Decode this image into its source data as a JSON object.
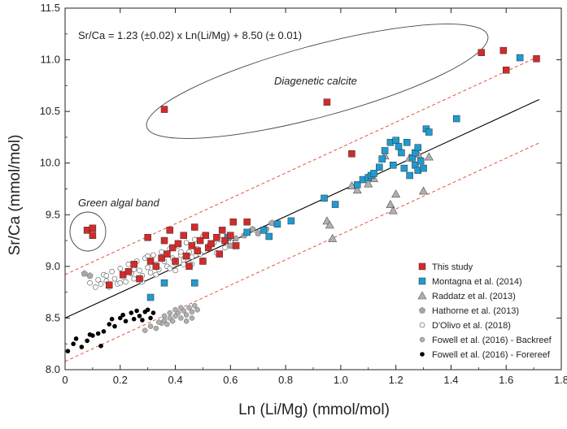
{
  "chart_data": {
    "type": "scatter",
    "title": "",
    "xlabel": "Ln (Li/Mg) (mmol/mol)",
    "ylabel": "Sr/Ca (mmol/mol)",
    "xlim": [
      0,
      1.8
    ],
    "ylim": [
      8.0,
      11.5
    ],
    "x_ticks": [
      "0",
      "0.2",
      "0.4",
      "0.6",
      "0.8",
      "1.0",
      "1.2",
      "1.4",
      "1.6",
      "1.8"
    ],
    "y_ticks": [
      "8.0",
      "8.5",
      "9.0",
      "9.5",
      "10.0",
      "10.5",
      "11.0",
      "11.5"
    ],
    "grid": false,
    "legend_position": "bottom-right",
    "equation": "Sr/Ca = 1.23 (±0.02) x Ln(Li/Mg) + 8.50 (± 0.01)",
    "annotations": [
      "Diagenetic calcite",
      "Green algal band"
    ],
    "regression": {
      "slope": 1.23,
      "intercept": 8.5,
      "x_range": [
        0,
        1.72
      ],
      "band_offset": 0.42
    },
    "series": [
      {
        "name": "This study",
        "marker": "square",
        "color": "#d42a2a",
        "points": [
          [
            0.08,
            9.35
          ],
          [
            0.1,
            9.37
          ],
          [
            0.1,
            9.3
          ],
          [
            0.16,
            8.82
          ],
          [
            0.21,
            8.92
          ],
          [
            0.23,
            8.95
          ],
          [
            0.25,
            9.02
          ],
          [
            0.27,
            8.88
          ],
          [
            0.3,
            9.28
          ],
          [
            0.31,
            9.05
          ],
          [
            0.33,
            9.0
          ],
          [
            0.35,
            9.08
          ],
          [
            0.36,
            9.25
          ],
          [
            0.37,
            9.12
          ],
          [
            0.38,
            9.35
          ],
          [
            0.39,
            9.18
          ],
          [
            0.4,
            9.05
          ],
          [
            0.41,
            9.22
          ],
          [
            0.43,
            9.3
          ],
          [
            0.44,
            9.1
          ],
          [
            0.45,
            9.0
          ],
          [
            0.46,
            9.2
          ],
          [
            0.47,
            9.38
          ],
          [
            0.48,
            9.15
          ],
          [
            0.49,
            9.25
          ],
          [
            0.5,
            9.05
          ],
          [
            0.51,
            9.3
          ],
          [
            0.52,
            9.18
          ],
          [
            0.53,
            9.22
          ],
          [
            0.55,
            9.28
          ],
          [
            0.56,
            9.12
          ],
          [
            0.57,
            9.35
          ],
          [
            0.58,
            9.25
          ],
          [
            0.6,
            9.3
          ],
          [
            0.61,
            9.43
          ],
          [
            0.62,
            9.2
          ],
          [
            0.66,
            9.43
          ],
          [
            0.36,
            10.52
          ],
          [
            0.95,
            10.59
          ],
          [
            1.04,
            10.09
          ],
          [
            1.51,
            11.07
          ],
          [
            1.59,
            11.09
          ],
          [
            1.6,
            10.9
          ],
          [
            1.71,
            11.01
          ]
        ]
      },
      {
        "name": "Montagna et al. (2014)",
        "marker": "square",
        "color": "#1f9bd0",
        "points": [
          [
            0.31,
            8.7
          ],
          [
            0.36,
            8.84
          ],
          [
            0.47,
            8.84
          ],
          [
            0.59,
            9.28
          ],
          [
            0.66,
            9.33
          ],
          [
            0.72,
            9.35
          ],
          [
            0.74,
            9.29
          ],
          [
            0.77,
            9.41
          ],
          [
            0.82,
            9.44
          ],
          [
            0.94,
            9.66
          ],
          [
            0.98,
            9.6
          ],
          [
            1.06,
            9.79
          ],
          [
            1.08,
            9.84
          ],
          [
            1.1,
            9.86
          ],
          [
            1.11,
            9.88
          ],
          [
            1.12,
            9.9
          ],
          [
            1.14,
            9.96
          ],
          [
            1.15,
            10.04
          ],
          [
            1.16,
            10.12
          ],
          [
            1.18,
            10.2
          ],
          [
            1.19,
            9.98
          ],
          [
            1.2,
            10.22
          ],
          [
            1.21,
            10.16
          ],
          [
            1.22,
            10.1
          ],
          [
            1.23,
            9.95
          ],
          [
            1.24,
            10.2
          ],
          [
            1.25,
            9.88
          ],
          [
            1.26,
            10.05
          ],
          [
            1.27,
            10.1
          ],
          [
            1.27,
            9.98
          ],
          [
            1.28,
            10.15
          ],
          [
            1.28,
            9.93
          ],
          [
            1.29,
            10.02
          ],
          [
            1.3,
            9.95
          ],
          [
            1.31,
            10.33
          ],
          [
            1.32,
            10.3
          ],
          [
            1.42,
            10.43
          ],
          [
            1.65,
            11.02
          ]
        ]
      },
      {
        "name": "Raddatz et al. (2013)",
        "marker": "triangle",
        "color": "#b0b0b0",
        "points": [
          [
            0.95,
            9.44
          ],
          [
            0.96,
            9.4
          ],
          [
            0.97,
            9.27
          ],
          [
            1.04,
            9.78
          ],
          [
            1.06,
            9.74
          ],
          [
            1.1,
            9.8
          ],
          [
            1.12,
            9.85
          ],
          [
            1.16,
            10.07
          ],
          [
            1.18,
            9.6
          ],
          [
            1.19,
            9.54
          ],
          [
            1.2,
            9.7
          ],
          [
            1.25,
            10.05
          ],
          [
            1.28,
            10.09
          ],
          [
            1.3,
            9.73
          ],
          [
            1.32,
            10.06
          ]
        ]
      },
      {
        "name": "Hathorne et al. (2013)",
        "marker": "pentagon",
        "color": "#a8a8a8",
        "points": [
          [
            0.07,
            8.93
          ],
          [
            0.09,
            8.91
          ],
          [
            0.6,
            9.2
          ],
          [
            0.62,
            9.27
          ],
          [
            0.65,
            9.3
          ],
          [
            0.68,
            9.36
          ],
          [
            0.7,
            9.32
          ],
          [
            0.73,
            9.36
          ],
          [
            0.75,
            9.42
          ]
        ]
      },
      {
        "name": "D'Olivo et al. (2018)",
        "marker": "circle-open",
        "color": "#ffffff",
        "points": [
          [
            0.09,
            8.84
          ],
          [
            0.11,
            8.8
          ],
          [
            0.12,
            8.87
          ],
          [
            0.13,
            8.83
          ],
          [
            0.14,
            8.92
          ],
          [
            0.15,
            8.86
          ],
          [
            0.16,
            8.8
          ],
          [
            0.17,
            8.95
          ],
          [
            0.18,
            8.88
          ],
          [
            0.19,
            8.83
          ],
          [
            0.2,
            8.98
          ],
          [
            0.21,
            8.9
          ],
          [
            0.22,
            8.85
          ],
          [
            0.23,
            9.02
          ],
          [
            0.24,
            8.93
          ],
          [
            0.25,
            8.88
          ],
          [
            0.26,
            9.05
          ],
          [
            0.27,
            8.96
          ],
          [
            0.28,
            8.91
          ],
          [
            0.29,
            9.08
          ],
          [
            0.3,
            8.99
          ],
          [
            0.31,
            8.94
          ],
          [
            0.32,
            9.11
          ],
          [
            0.33,
            9.02
          ],
          [
            0.34,
            8.97
          ],
          [
            0.35,
            9.14
          ],
          [
            0.36,
            9.05
          ],
          [
            0.37,
            9.0
          ],
          [
            0.38,
            9.17
          ],
          [
            0.39,
            9.08
          ],
          [
            0.4,
            9.03
          ],
          [
            0.41,
            9.2
          ],
          [
            0.42,
            9.11
          ],
          [
            0.43,
            9.06
          ],
          [
            0.44,
            9.23
          ],
          [
            0.45,
            9.14
          ],
          [
            0.46,
            9.09
          ],
          [
            0.47,
            9.26
          ],
          [
            0.48,
            9.17
          ],
          [
            0.49,
            9.12
          ],
          [
            0.5,
            9.29
          ],
          [
            0.52,
            9.2
          ],
          [
            0.54,
            9.23
          ],
          [
            0.56,
            9.26
          ],
          [
            0.58,
            9.18
          ],
          [
            0.6,
            9.24
          ],
          [
            0.28,
            8.85
          ],
          [
            0.33,
            8.92
          ],
          [
            0.38,
            8.98
          ],
          [
            0.43,
            9.02
          ],
          [
            0.25,
            8.97
          ],
          [
            0.35,
            9.09
          ],
          [
            0.42,
            9.14
          ],
          [
            0.46,
            9.02
          ],
          [
            0.15,
            8.91
          ],
          [
            0.2,
            8.84
          ],
          [
            0.3,
            9.1
          ],
          [
            0.4,
            8.96
          ],
          [
            0.5,
            9.06
          ],
          [
            0.55,
            9.13
          ]
        ]
      },
      {
        "name": "Fowell et al. (2016) - Backreef",
        "marker": "circle-gray",
        "color": "#b0b0b0",
        "points": [
          [
            0.29,
            8.38
          ],
          [
            0.31,
            8.42
          ],
          [
            0.33,
            8.4
          ],
          [
            0.35,
            8.45
          ],
          [
            0.36,
            8.48
          ],
          [
            0.37,
            8.44
          ],
          [
            0.38,
            8.5
          ],
          [
            0.39,
            8.47
          ],
          [
            0.4,
            8.52
          ],
          [
            0.41,
            8.55
          ],
          [
            0.42,
            8.5
          ],
          [
            0.43,
            8.57
          ],
          [
            0.44,
            8.53
          ],
          [
            0.45,
            8.6
          ],
          [
            0.46,
            8.56
          ],
          [
            0.47,
            8.62
          ],
          [
            0.48,
            8.58
          ],
          [
            0.38,
            8.55
          ],
          [
            0.42,
            8.6
          ],
          [
            0.44,
            8.47
          ],
          [
            0.46,
            8.5
          ],
          [
            0.4,
            8.58
          ],
          [
            0.36,
            8.52
          ],
          [
            0.34,
            8.46
          ]
        ]
      },
      {
        "name": "Fowell et al. (2016) - Forereef",
        "marker": "circle-black",
        "color": "#000000",
        "points": [
          [
            0.01,
            8.18
          ],
          [
            0.03,
            8.25
          ],
          [
            0.04,
            8.3
          ],
          [
            0.06,
            8.22
          ],
          [
            0.08,
            8.28
          ],
          [
            0.09,
            8.34
          ],
          [
            0.1,
            8.33
          ],
          [
            0.12,
            8.35
          ],
          [
            0.13,
            8.23
          ],
          [
            0.14,
            8.37
          ],
          [
            0.16,
            8.44
          ],
          [
            0.17,
            8.49
          ],
          [
            0.18,
            8.42
          ],
          [
            0.2,
            8.5
          ],
          [
            0.21,
            8.53
          ],
          [
            0.22,
            8.47
          ],
          [
            0.24,
            8.55
          ],
          [
            0.25,
            8.49
          ],
          [
            0.26,
            8.57
          ],
          [
            0.27,
            8.52
          ],
          [
            0.28,
            8.48
          ],
          [
            0.29,
            8.56
          ],
          [
            0.3,
            8.58
          ],
          [
            0.31,
            8.5
          ],
          [
            0.32,
            8.55
          ]
        ]
      }
    ]
  }
}
